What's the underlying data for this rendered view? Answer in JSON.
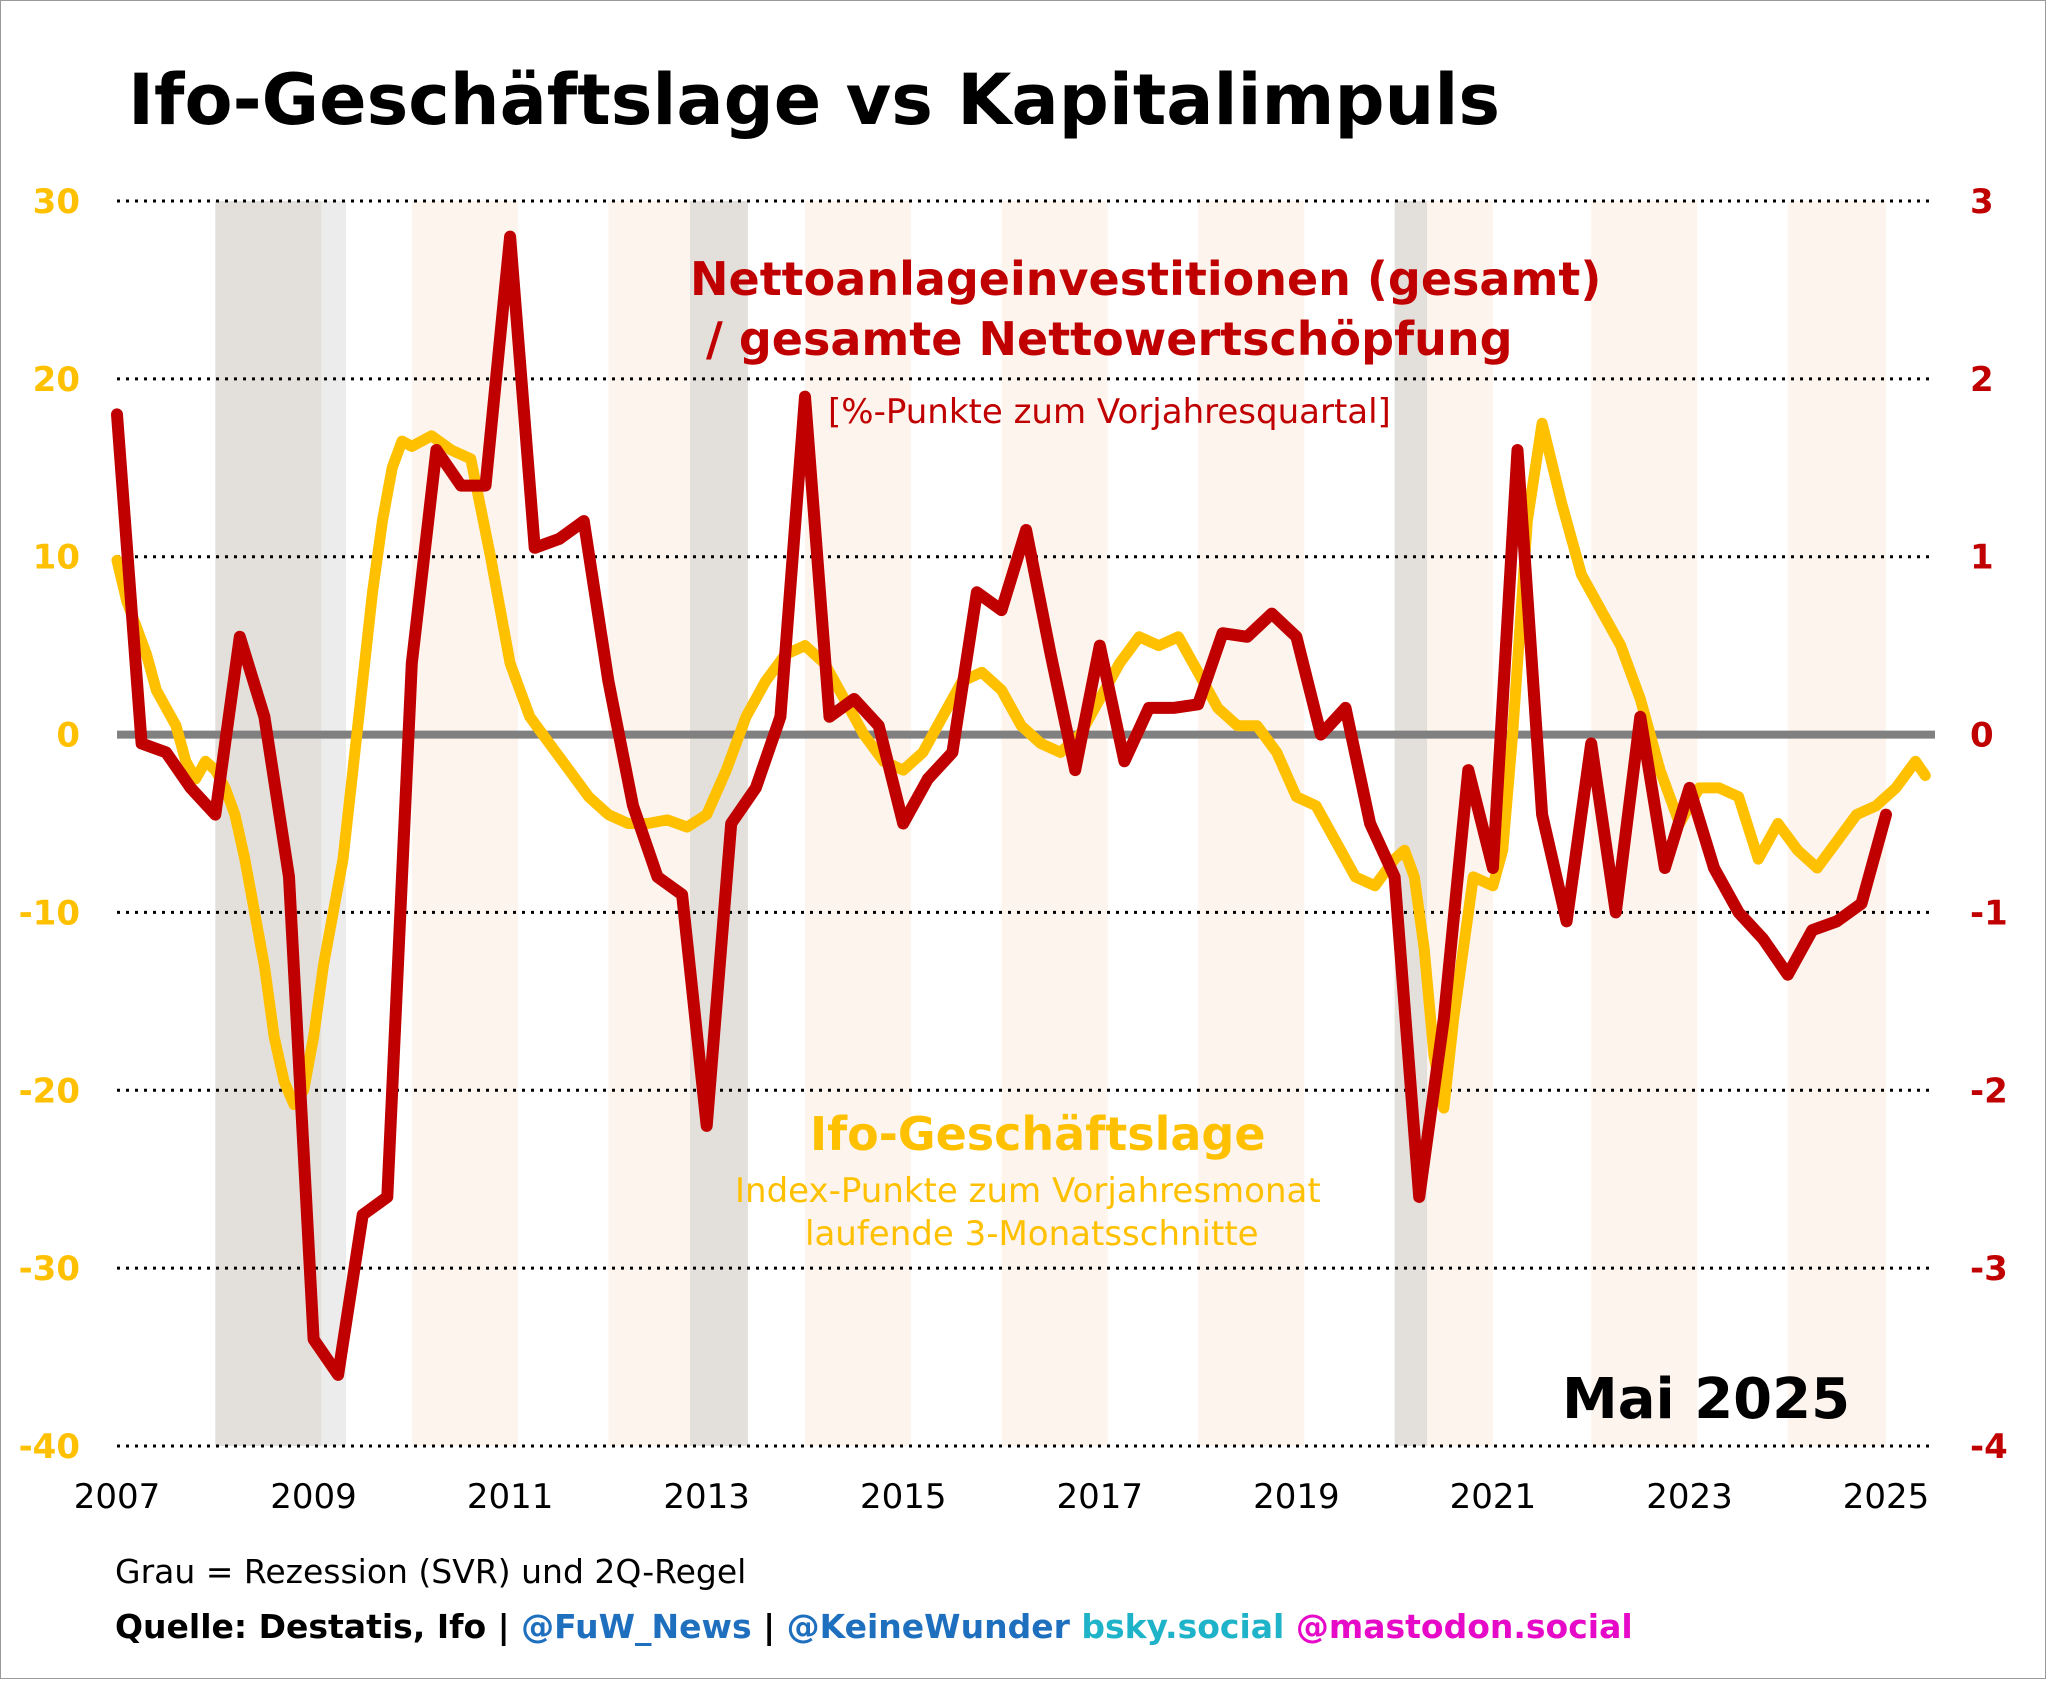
{
  "colors": {
    "ifo": "#ffc000",
    "invest": "#c00000",
    "recession": "#e3e0dc",
    "recession_light": "#ececec",
    "warm_band": "#fdf4ee",
    "zero_line": "#808080",
    "fuw": "#1f6fbf",
    "bsky": "#1fb3c9",
    "mastodon": "#e60ac8"
  },
  "chart_data": {
    "type": "line",
    "title": "Ifo-Geschäftslage vs Kapitalimpuls",
    "xlabel": "",
    "x_ticks": [
      "2007",
      "2009",
      "2011",
      "2013",
      "2015",
      "2017",
      "2019",
      "2021",
      "2023",
      "2025"
    ],
    "x_range": [
      2007.0,
      2025.6
    ],
    "y_left": {
      "range": [
        -40,
        30
      ],
      "ticks": [
        "30",
        "20",
        "10",
        "0",
        "-10",
        "-20",
        "-30",
        "-40"
      ]
    },
    "y_right": {
      "range": [
        -4,
        3
      ],
      "ticks": [
        "3",
        "2",
        "1",
        "0",
        "-1",
        "-2",
        "-3",
        "-4"
      ]
    },
    "grid": "dotted horizontal",
    "recession_bands": [
      [
        2008.0,
        2009.08
      ],
      [
        2009.08,
        2009.33
      ],
      [
        2012.83,
        2013.42
      ],
      [
        2020.0,
        2020.33
      ]
    ],
    "year_bands": [
      [
        2010.0,
        2011.08
      ],
      [
        2012.0,
        2012.83
      ],
      [
        2014.0,
        2015.08
      ],
      [
        2016.0,
        2017.08
      ],
      [
        2018.0,
        2019.08
      ],
      [
        2020.33,
        2021.0
      ],
      [
        2022.0,
        2023.08
      ],
      [
        2024.0,
        2025.0
      ]
    ],
    "series": [
      {
        "name": "Ifo-Geschäftslage",
        "axis": "left",
        "units": "Index-Punkte zum Vorjahresmonat",
        "x": [
          2007.0,
          2007.1,
          2007.2,
          2007.3,
          2007.4,
          2007.5,
          2007.6,
          2007.7,
          2007.8,
          2007.9,
          2008.0,
          2008.1,
          2008.2,
          2008.3,
          2008.4,
          2008.5,
          2008.6,
          2008.7,
          2008.8,
          2008.9,
          2009.0,
          2009.1,
          2009.2,
          2009.3,
          2009.4,
          2009.5,
          2009.6,
          2009.7,
          2009.8,
          2009.9,
          2010.0,
          2010.2,
          2010.4,
          2010.6,
          2010.8,
          2011.0,
          2011.2,
          2011.4,
          2011.6,
          2011.8,
          2012.0,
          2012.2,
          2012.4,
          2012.6,
          2012.8,
          2013.0,
          2013.2,
          2013.4,
          2013.6,
          2013.8,
          2014.0,
          2014.2,
          2014.4,
          2014.6,
          2014.8,
          2015.0,
          2015.2,
          2015.4,
          2015.6,
          2015.8,
          2016.0,
          2016.2,
          2016.4,
          2016.6,
          2016.8,
          2017.0,
          2017.2,
          2017.4,
          2017.6,
          2017.8,
          2018.0,
          2018.2,
          2018.4,
          2018.6,
          2018.8,
          2019.0,
          2019.2,
          2019.4,
          2019.6,
          2019.8,
          2020.0,
          2020.1,
          2020.2,
          2020.3,
          2020.4,
          2020.5,
          2020.6,
          2020.8,
          2021.0,
          2021.1,
          2021.2,
          2021.35,
          2021.5,
          2021.7,
          2021.9,
          2022.1,
          2022.3,
          2022.5,
          2022.7,
          2022.9,
          2023.1,
          2023.3,
          2023.5,
          2023.7,
          2023.9,
          2024.1,
          2024.3,
          2024.5,
          2024.7,
          2024.9,
          2025.1,
          2025.3,
          2025.4
        ],
        "y": [
          9.8,
          7.5,
          6.0,
          4.5,
          2.5,
          1.5,
          0.5,
          -1.5,
          -2.5,
          -1.5,
          -2.0,
          -3.0,
          -4.5,
          -7.0,
          -10.0,
          -13.0,
          -17.0,
          -19.5,
          -20.8,
          -20.0,
          -17.0,
          -13.0,
          -10.0,
          -7.0,
          -2.0,
          3.0,
          8.0,
          12.0,
          15.0,
          16.5,
          16.2,
          16.8,
          16.0,
          15.5,
          10.0,
          4.0,
          1.0,
          -0.5,
          -2.0,
          -3.5,
          -4.5,
          -5.0,
          -5.0,
          -4.8,
          -5.2,
          -4.5,
          -2.0,
          1.0,
          3.0,
          4.5,
          5.0,
          4.0,
          2.0,
          0.0,
          -1.5,
          -2.0,
          -1.0,
          1.0,
          3.0,
          3.5,
          2.5,
          0.5,
          -0.5,
          -1.0,
          0.0,
          2.0,
          4.0,
          5.5,
          5.0,
          5.5,
          3.5,
          1.5,
          0.5,
          0.5,
          -1.0,
          -3.5,
          -4.0,
          -6.0,
          -8.0,
          -8.5,
          -7.0,
          -6.5,
          -8.0,
          -12.0,
          -18.0,
          -21.0,
          -16.0,
          -8.0,
          -8.5,
          -6.5,
          0.0,
          12.0,
          17.5,
          13.0,
          9.0,
          7.0,
          5.0,
          2.0,
          -2.0,
          -5.0,
          -3.0,
          -3.0,
          -3.5,
          -7.0,
          -5.0,
          -6.5,
          -7.5,
          -6.0,
          -4.5,
          -4.0,
          -3.0,
          -1.5,
          -2.3
        ]
      },
      {
        "name": "Nettoanlageinvestitionen (gesamt) / gesamte Nettowertschöpfung",
        "axis": "right",
        "units": "%-Punkte zum Vorjahresquartal",
        "x": [
          2007.0,
          2007.25,
          2007.5,
          2007.75,
          2008.0,
          2008.25,
          2008.5,
          2008.75,
          2009.0,
          2009.25,
          2009.5,
          2009.75,
          2010.0,
          2010.25,
          2010.5,
          2010.75,
          2011.0,
          2011.25,
          2011.5,
          2011.75,
          2012.0,
          2012.25,
          2012.5,
          2012.75,
          2013.0,
          2013.25,
          2013.5,
          2013.75,
          2014.0,
          2014.25,
          2014.5,
          2014.75,
          2015.0,
          2015.25,
          2015.5,
          2015.75,
          2016.0,
          2016.25,
          2016.5,
          2016.75,
          2017.0,
          2017.25,
          2017.5,
          2017.75,
          2018.0,
          2018.25,
          2018.5,
          2018.75,
          2019.0,
          2019.25,
          2019.5,
          2019.75,
          2020.0,
          2020.25,
          2020.5,
          2020.75,
          2021.0,
          2021.25,
          2021.5,
          2021.75,
          2022.0,
          2022.25,
          2022.5,
          2022.75,
          2023.0,
          2023.25,
          2023.5,
          2023.75,
          2024.0,
          2024.25,
          2024.5,
          2024.75,
          2025.0
        ],
        "y": [
          1.8,
          -0.05,
          -0.1,
          -0.3,
          -0.45,
          0.55,
          0.1,
          -0.8,
          -3.4,
          -3.6,
          -2.7,
          -2.6,
          0.4,
          1.6,
          1.4,
          1.4,
          2.8,
          1.05,
          1.1,
          1.2,
          0.3,
          -0.4,
          -0.8,
          -0.9,
          -2.2,
          -0.5,
          -0.3,
          0.1,
          1.9,
          0.1,
          0.2,
          0.05,
          -0.5,
          -0.25,
          -0.1,
          0.8,
          0.7,
          1.15,
          0.45,
          -0.2,
          0.5,
          -0.15,
          0.15,
          0.15,
          0.17,
          0.57,
          0.55,
          0.68,
          0.55,
          0.0,
          0.15,
          -0.5,
          -0.8,
          -2.6,
          -1.6,
          -0.2,
          -0.75,
          1.6,
          -0.45,
          -1.05,
          -0.05,
          -1.0,
          0.1,
          -0.75,
          -0.3,
          -0.75,
          -1.0,
          -1.15,
          -1.35,
          -1.1,
          -1.05,
          -0.95,
          -0.45
        ]
      }
    ],
    "labels": {
      "invest_title_1": "Nettoanlageinvestitionen (gesamt)",
      "invest_title_2": "/ gesamte Nettowertschöpfung",
      "invest_unit": "[%-Punkte zum Vorjahresquartal]",
      "ifo_title": "Ifo-Geschäftslage",
      "ifo_unit_1": "Index-Punkte zum Vorjahresmonat",
      "ifo_unit_2": "laufende 3-Monatsschnitte"
    },
    "date_stamp": "Mai 2025"
  },
  "footer": {
    "note": "Grau = Rezession (SVR) und 2Q-Regel",
    "source": "Quelle: Destatis, Ifo | ",
    "fuw": "@FuW_News",
    "sep": " | ",
    "keinewunder": "@KeineWunder",
    "bsky": " bsky.social",
    "mastodon": " @mastodon.social"
  }
}
